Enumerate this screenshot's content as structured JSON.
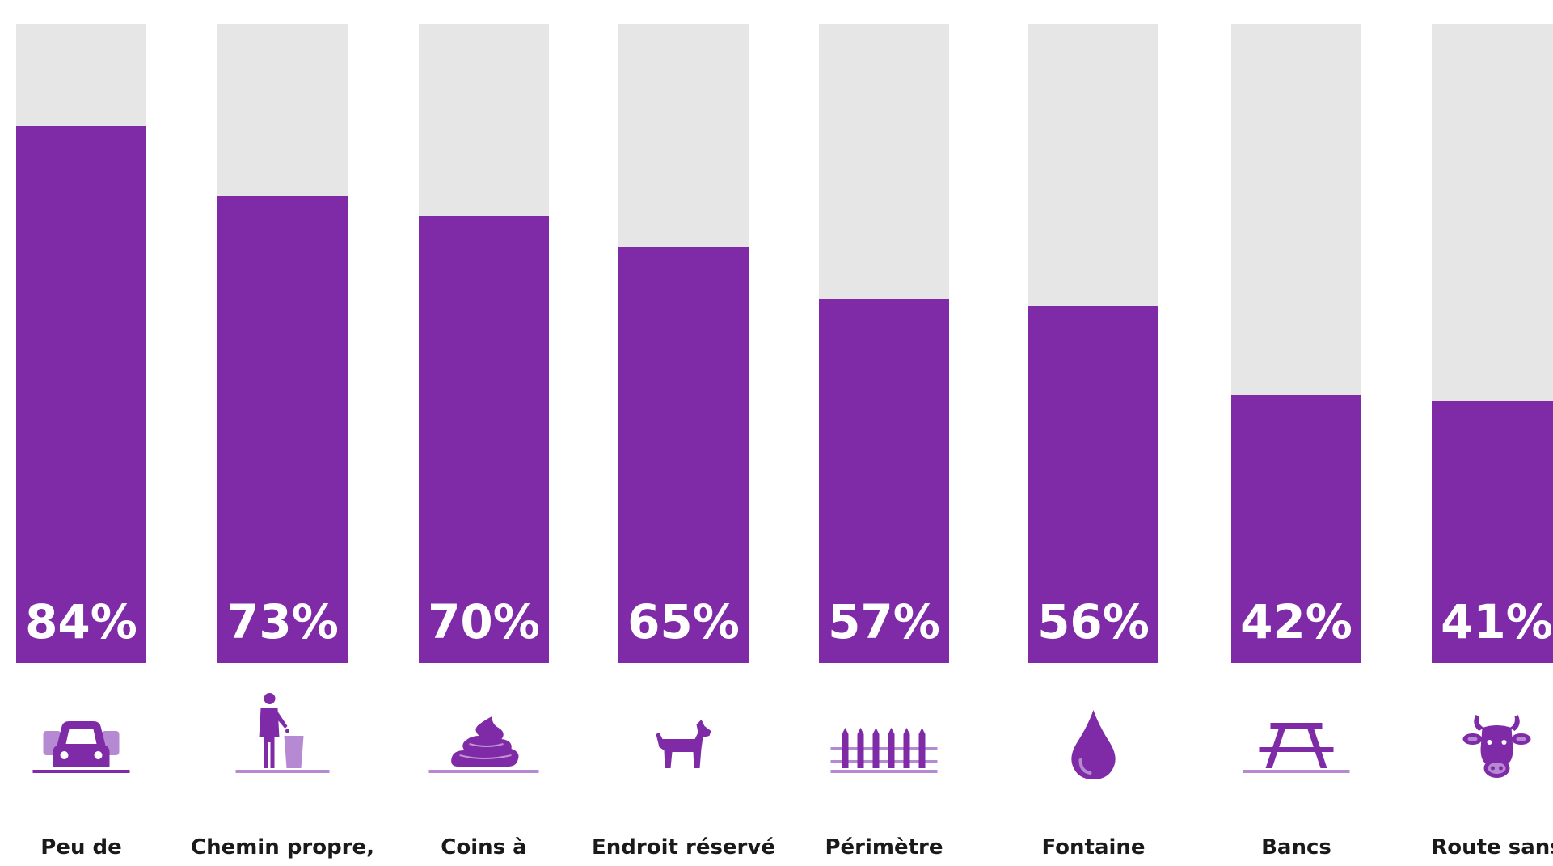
{
  "chart_data": {
    "type": "bar",
    "orientation": "vertical",
    "value_unit": "%",
    "ylim": [
      0,
      100
    ],
    "grid": false,
    "legend": "none",
    "colors": {
      "fill": "#7f2aa6",
      "track": "#e6e6e6",
      "icon_light": "#b58ad3"
    },
    "categories": [
      {
        "label": "Peu de",
        "value": 84,
        "value_label": "84%",
        "icon": "car-icon"
      },
      {
        "label": "Chemin propre,",
        "value": 73,
        "value_label": "73%",
        "icon": "trash-person-icon"
      },
      {
        "label": "Coins à",
        "value": 70,
        "value_label": "70%",
        "icon": "poop-icon"
      },
      {
        "label": "Endroit réservé",
        "value": 65,
        "value_label": "65%",
        "icon": "dog-icon"
      },
      {
        "label": "Périmètre",
        "value": 57,
        "value_label": "57%",
        "icon": "fence-icon"
      },
      {
        "label": "Fontaine",
        "value": 56,
        "value_label": "56%",
        "icon": "water-drop-icon"
      },
      {
        "label": "Bancs",
        "value": 42,
        "value_label": "42%",
        "icon": "picnic-bench-icon"
      },
      {
        "label": "Route sans",
        "value": 41,
        "value_label": "41%",
        "icon": "cow-icon"
      }
    ]
  }
}
